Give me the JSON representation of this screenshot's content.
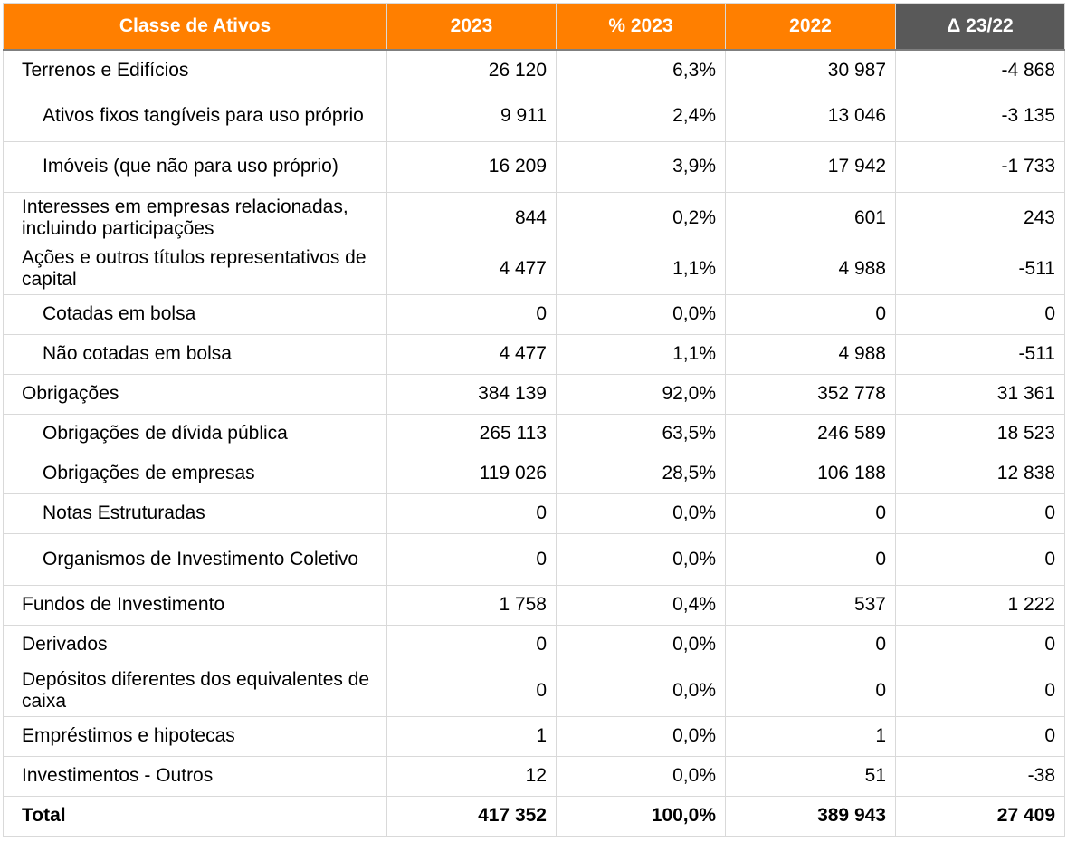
{
  "colors": {
    "header_orange": "#ff7f00",
    "header_grey": "#595959",
    "grid": "#d9d9d9"
  },
  "header": [
    "Classe de Ativos",
    "2023",
    "% 2023",
    "2022",
    "Δ 23/22"
  ],
  "rows": [
    {
      "label": "Terrenos e Edifícios",
      "v2023": "26 120",
      "p2023": "6,3%",
      "v2022": "30 987",
      "delta": "-4 868",
      "indent": false,
      "total": false
    },
    {
      "label": "Ativos fixos tangíveis para uso próprio",
      "v2023": "9 911",
      "p2023": "2,4%",
      "v2022": "13 046",
      "delta": "-3 135",
      "indent": true,
      "total": false
    },
    {
      "label": "Imóveis (que não para uso próprio)",
      "v2023": "16 209",
      "p2023": "3,9%",
      "v2022": "17 942",
      "delta": "-1 733",
      "indent": true,
      "total": false
    },
    {
      "label": "Interesses em empresas relacionadas, incluindo participações",
      "v2023": "844",
      "p2023": "0,2%",
      "v2022": "601",
      "delta": "243",
      "indent": false,
      "total": false
    },
    {
      "label": "Ações e outros títulos representativos de capital",
      "v2023": "4 477",
      "p2023": "1,1%",
      "v2022": "4 988",
      "delta": "-511",
      "indent": false,
      "total": false
    },
    {
      "label": "Cotadas em bolsa",
      "v2023": "0",
      "p2023": "0,0%",
      "v2022": "0",
      "delta": "0",
      "indent": true,
      "total": false
    },
    {
      "label": "Não cotadas em bolsa",
      "v2023": "4 477",
      "p2023": "1,1%",
      "v2022": "4 988",
      "delta": "-511",
      "indent": true,
      "total": false
    },
    {
      "label": "Obrigações",
      "v2023": "384 139",
      "p2023": "92,0%",
      "v2022": "352 778",
      "delta": "31 361",
      "indent": false,
      "total": false
    },
    {
      "label": "Obrigações de dívida pública",
      "v2023": "265 113",
      "p2023": "63,5%",
      "v2022": "246 589",
      "delta": "18 523",
      "indent": true,
      "total": false
    },
    {
      "label": "Obrigações de empresas",
      "v2023": "119 026",
      "p2023": "28,5%",
      "v2022": "106 188",
      "delta": "12 838",
      "indent": true,
      "total": false
    },
    {
      "label": "Notas Estruturadas",
      "v2023": "0",
      "p2023": "0,0%",
      "v2022": "0",
      "delta": "0",
      "indent": true,
      "total": false
    },
    {
      "label": "Organismos de Investimento Coletivo",
      "v2023": "0",
      "p2023": "0,0%",
      "v2022": "0",
      "delta": "0",
      "indent": true,
      "total": false
    },
    {
      "label": "Fundos de Investimento",
      "v2023": "1 758",
      "p2023": "0,4%",
      "v2022": "537",
      "delta": "1 222",
      "indent": false,
      "total": false
    },
    {
      "label": "Derivados",
      "v2023": "0",
      "p2023": "0,0%",
      "v2022": "0",
      "delta": "0",
      "indent": false,
      "total": false
    },
    {
      "label": "Depósitos diferentes dos equivalentes de caixa",
      "v2023": "0",
      "p2023": "0,0%",
      "v2022": "0",
      "delta": "0",
      "indent": false,
      "total": false
    },
    {
      "label": "Empréstimos e hipotecas",
      "v2023": "1",
      "p2023": "0,0%",
      "v2022": "1",
      "delta": "0",
      "indent": false,
      "total": false
    },
    {
      "label": "Investimentos - Outros",
      "v2023": "12",
      "p2023": "0,0%",
      "v2022": "51",
      "delta": "-38",
      "indent": false,
      "total": false
    },
    {
      "label": "Total",
      "v2023": "417 352",
      "p2023": "100,0%",
      "v2022": "389 943",
      "delta": "27 409",
      "indent": false,
      "total": true
    }
  ]
}
